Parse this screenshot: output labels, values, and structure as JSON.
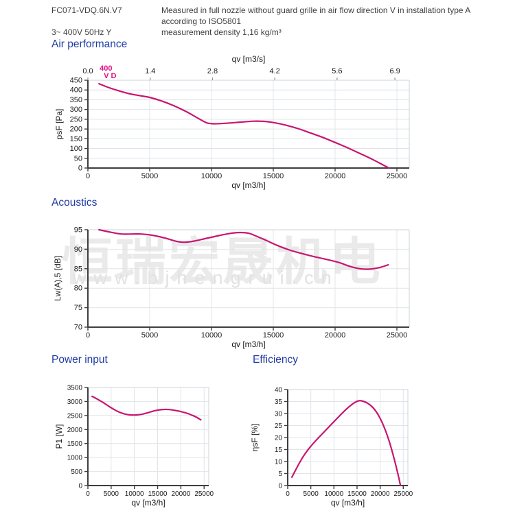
{
  "header": {
    "model": "FC071-VDQ.6N.V7",
    "measurement_note": "Measured in full nozzle without guard grille in air flow direction V in installation type A according to ISO5801",
    "power_supply": "3~ 400V 50Hz Y",
    "density_note": "measurement density 1,16 kg/m³"
  },
  "sections": {
    "air_performance": "Air performance",
    "acoustics": "Acoustics",
    "power_input": "Power input",
    "efficiency": "Efficiency"
  },
  "watermark": {
    "cjk_text": "恒瑞宏晟机电",
    "url_text": "www.bjhengrui.cn"
  },
  "colors": {
    "curve": "#c9156f",
    "annotation": "#e2117e",
    "heading": "#1e3aa5"
  },
  "chart_data": [
    {
      "type": "line",
      "title": "Air performance",
      "xlabel": "qv [m3/h]",
      "ylabel": "psF [Pa]",
      "xlim": [
        0,
        26000
      ],
      "ylim": [
        0,
        450
      ],
      "xticks": [
        0,
        5000,
        10000,
        15000,
        20000,
        25000
      ],
      "yticks": [
        0,
        50,
        100,
        150,
        200,
        250,
        300,
        350,
        400,
        450
      ],
      "grid": true,
      "top_axis": {
        "label": "qv [m3/s]",
        "ticks": [
          {
            "v": 0,
            "label": "0.0"
          },
          {
            "v": 5040,
            "label": "1.4"
          },
          {
            "v": 10080,
            "label": "2.8"
          },
          {
            "v": 15120,
            "label": "4.2"
          },
          {
            "v": 20160,
            "label": "5.6"
          },
          {
            "v": 24840,
            "label": "6.9"
          }
        ]
      },
      "annotation": {
        "lines": [
          "400",
          "V D"
        ],
        "x": 950
      },
      "points": [
        [
          900,
          432
        ],
        [
          1800,
          410
        ],
        [
          2600,
          394
        ],
        [
          3500,
          379
        ],
        [
          4300,
          370
        ],
        [
          5000,
          362
        ],
        [
          6000,
          343
        ],
        [
          7000,
          318
        ],
        [
          8000,
          288
        ],
        [
          9000,
          252
        ],
        [
          9700,
          230
        ],
        [
          10500,
          227
        ],
        [
          11500,
          231
        ],
        [
          12500,
          236
        ],
        [
          13400,
          240
        ],
        [
          14300,
          239
        ],
        [
          15200,
          231
        ],
        [
          16000,
          220
        ],
        [
          17000,
          202
        ],
        [
          18000,
          180
        ],
        [
          19000,
          157
        ],
        [
          20000,
          131
        ],
        [
          21000,
          104
        ],
        [
          22000,
          75
        ],
        [
          23000,
          45
        ],
        [
          24000,
          12
        ],
        [
          24350,
          0
        ]
      ]
    },
    {
      "type": "line",
      "title": "Acoustics",
      "xlabel": "qv [m3/h]",
      "ylabel": "Lw(A),5 [dB]",
      "xlim": [
        0,
        26000
      ],
      "ylim": [
        70,
        95
      ],
      "xticks": [
        0,
        5000,
        10000,
        15000,
        20000,
        25000
      ],
      "yticks": [
        70,
        75,
        80,
        85,
        90,
        95
      ],
      "grid": true,
      "points": [
        [
          900,
          95.0
        ],
        [
          1800,
          94.4
        ],
        [
          2700,
          93.9
        ],
        [
          3600,
          93.9
        ],
        [
          4300,
          93.9
        ],
        [
          5200,
          93.6
        ],
        [
          6200,
          92.9
        ],
        [
          7200,
          92.0
        ],
        [
          7800,
          91.8
        ],
        [
          8600,
          92.1
        ],
        [
          9600,
          92.8
        ],
        [
          10600,
          93.5
        ],
        [
          11600,
          94.1
        ],
        [
          12300,
          94.3
        ],
        [
          13000,
          94.1
        ],
        [
          13600,
          93.4
        ],
        [
          14400,
          92.3
        ],
        [
          15300,
          91.0
        ],
        [
          16300,
          89.8
        ],
        [
          17300,
          88.9
        ],
        [
          18300,
          88.1
        ],
        [
          19300,
          87.4
        ],
        [
          20300,
          86.6
        ],
        [
          21200,
          85.6
        ],
        [
          22000,
          85.0
        ],
        [
          22800,
          84.9
        ],
        [
          23600,
          85.3
        ],
        [
          24300,
          86.0
        ]
      ]
    },
    {
      "type": "line",
      "title": "Power input",
      "xlabel": "qv [m3/h]",
      "ylabel": "P1 [W]",
      "xlim": [
        0,
        26000
      ],
      "ylim": [
        0,
        3500
      ],
      "xticks": [
        0,
        5000,
        10000,
        15000,
        20000,
        25000
      ],
      "yticks": [
        0,
        500,
        1000,
        1500,
        2000,
        2500,
        3000,
        3500
      ],
      "grid": true,
      "points": [
        [
          900,
          3185
        ],
        [
          1800,
          3105
        ],
        [
          2700,
          3020
        ],
        [
          3600,
          2930
        ],
        [
          4500,
          2830
        ],
        [
          5500,
          2730
        ],
        [
          6500,
          2640
        ],
        [
          7500,
          2575
        ],
        [
          8500,
          2535
        ],
        [
          9500,
          2518
        ],
        [
          10500,
          2520
        ],
        [
          11500,
          2540
        ],
        [
          12500,
          2580
        ],
        [
          13500,
          2630
        ],
        [
          14500,
          2675
        ],
        [
          15500,
          2705
        ],
        [
          16500,
          2718
        ],
        [
          17500,
          2712
        ],
        [
          18500,
          2690
        ],
        [
          19500,
          2660
        ],
        [
          20500,
          2620
        ],
        [
          21500,
          2570
        ],
        [
          22500,
          2505
        ],
        [
          23400,
          2435
        ],
        [
          24300,
          2345
        ]
      ]
    },
    {
      "type": "line",
      "title": "Efficiency",
      "xlabel": "qv [m3/h]",
      "ylabel": "ηsF [%]",
      "xlim": [
        0,
        26000
      ],
      "ylim": [
        0,
        40
      ],
      "xticks": [
        0,
        5000,
        10000,
        15000,
        20000,
        25000
      ],
      "yticks": [
        0,
        5,
        10,
        15,
        20,
        25,
        30,
        35,
        40
      ],
      "grid": true,
      "points": [
        [
          900,
          3.5
        ],
        [
          1800,
          6.8
        ],
        [
          2700,
          10.0
        ],
        [
          3600,
          12.8
        ],
        [
          4500,
          15.2
        ],
        [
          5500,
          17.5
        ],
        [
          6500,
          19.6
        ],
        [
          7500,
          21.6
        ],
        [
          8500,
          23.6
        ],
        [
          9500,
          25.6
        ],
        [
          10500,
          27.6
        ],
        [
          11500,
          29.6
        ],
        [
          12500,
          31.5
        ],
        [
          13500,
          33.2
        ],
        [
          14500,
          34.6
        ],
        [
          15300,
          35.3
        ],
        [
          16000,
          35.3
        ],
        [
          17000,
          34.6
        ],
        [
          18000,
          33.3
        ],
        [
          19000,
          31.2
        ],
        [
          20000,
          28.0
        ],
        [
          21000,
          23.7
        ],
        [
          22000,
          18.2
        ],
        [
          23000,
          11.4
        ],
        [
          23800,
          5.2
        ],
        [
          24400,
          0
        ]
      ]
    }
  ]
}
